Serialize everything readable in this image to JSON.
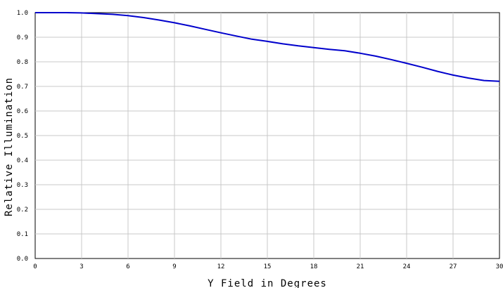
{
  "chart_data": {
    "type": "line",
    "title": "",
    "xlabel": "Y Field in Degrees",
    "ylabel": "Relative Illumination",
    "xlim": [
      0,
      30
    ],
    "ylim": [
      0.0,
      1.0
    ],
    "x_ticks": [
      "0",
      "3",
      "6",
      "9",
      "12",
      "15",
      "18",
      "21",
      "24",
      "27",
      "30"
    ],
    "y_ticks": [
      "0.0",
      "0.1",
      "0.2",
      "0.3",
      "0.4",
      "0.5",
      "0.6",
      "0.7",
      "0.8",
      "0.9",
      "1.0"
    ],
    "grid": true,
    "series": [
      {
        "color": "#0000cc",
        "x": [
          0,
          1,
          2,
          3,
          4,
          5,
          6,
          7,
          8,
          9,
          10,
          11,
          12,
          13,
          14,
          15,
          16,
          17,
          18,
          19,
          20,
          21,
          22,
          23,
          24,
          25,
          26,
          27,
          28,
          29,
          30
        ],
        "y": [
          1.0,
          1.0,
          1.0,
          0.999,
          0.996,
          0.993,
          0.988,
          0.98,
          0.97,
          0.959,
          0.946,
          0.932,
          0.918,
          0.905,
          0.892,
          0.883,
          0.873,
          0.865,
          0.858,
          0.851,
          0.845,
          0.835,
          0.823,
          0.809,
          0.794,
          0.778,
          0.761,
          0.746,
          0.734,
          0.724,
          0.721
        ]
      }
    ]
  }
}
